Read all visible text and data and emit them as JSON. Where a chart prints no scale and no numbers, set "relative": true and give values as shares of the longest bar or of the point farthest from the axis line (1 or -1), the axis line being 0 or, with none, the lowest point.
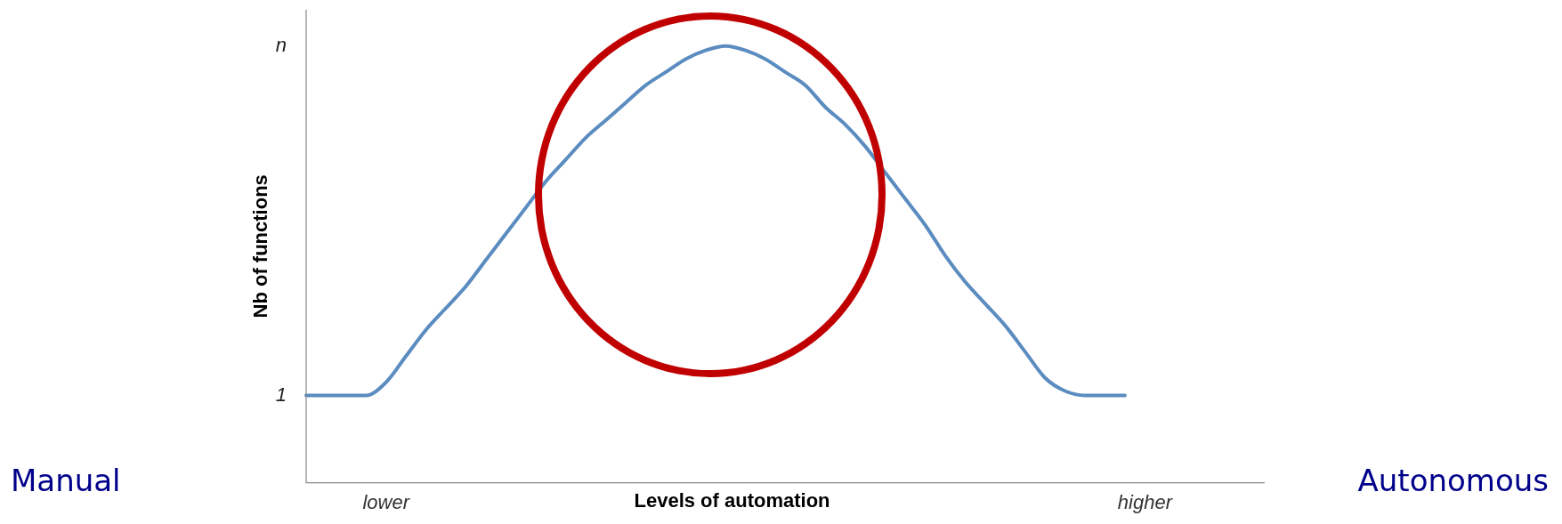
{
  "chart_data": {
    "type": "line",
    "relative": true,
    "xlabel": "Levels of automation",
    "ylabel": "Nb of functions",
    "categories": [
      null,
      null,
      null,
      null,
      "lower",
      null,
      null,
      null,
      null,
      null,
      null,
      null,
      null,
      null,
      null,
      null,
      null,
      null,
      null,
      null,
      null,
      null,
      null,
      null,
      null,
      null,
      null,
      null,
      null,
      null,
      null,
      null,
      null,
      null,
      null,
      null,
      null,
      null,
      null,
      null,
      null,
      null,
      "higher",
      null,
      null,
      null,
      null,
      null,
      null
    ],
    "series": [
      {
        "color": "#5b8cc0",
        "values": [
          0.2,
          0.2,
          0.2,
          0.2,
          0.23,
          0.29,
          0.35,
          0.4,
          0.45,
          0.51,
          0.57,
          0.63,
          0.69,
          0.74,
          0.79,
          0.83,
          0.87,
          0.91,
          0.94,
          0.97,
          0.99,
          1,
          0.99,
          0.97,
          0.94,
          0.91,
          0.86,
          0.82,
          0.77,
          0.71,
          0.65,
          0.59,
          0.52,
          0.46,
          0.41,
          0.36,
          0.3,
          0.24,
          0.21,
          0.2,
          0.2,
          0.2,
          null,
          null,
          null,
          null,
          null,
          null,
          null
        ]
      }
    ],
    "annotations": [
      "n",
      "1",
      "Manual",
      "Autonomous"
    ],
    "grid": false,
    "legend": false,
    "marker": "none",
    "line_style": "solid"
  }
}
